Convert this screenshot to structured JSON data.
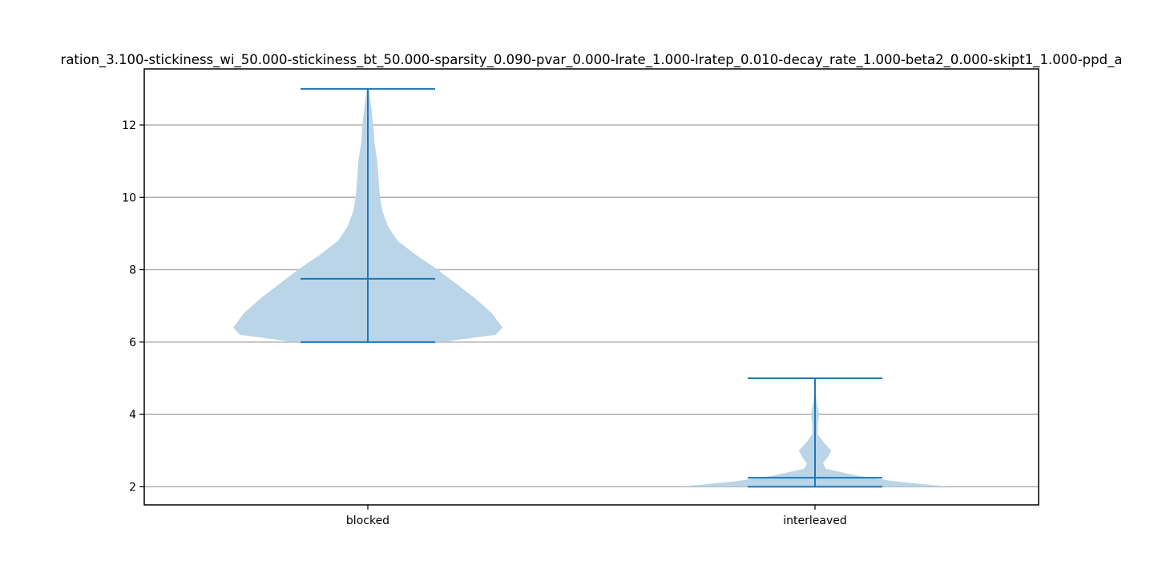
{
  "chart_data": {
    "type": "violin",
    "title": "ration_3.100-stickiness_wi_50.000-stickiness_bt_50.000-sparsity_0.090-pvar_0.000-lrate_1.000-lratep_0.010-decay_rate_1.000-beta2_0.000-skipt1_1.000-ppd_a",
    "categories": [
      "blocked",
      "interleaved"
    ],
    "ylim": [
      1.5,
      13.55
    ],
    "yticks": [
      2,
      4,
      6,
      8,
      10,
      12
    ],
    "grid": "horizontal",
    "color": "#1f77b4",
    "fill_color": "#bad5e8",
    "series": [
      {
        "category": "blocked",
        "min": 6,
        "median": 7.75,
        "max": 13,
        "density": [
          [
            6.0,
            0.55
          ],
          [
            6.2,
            0.95
          ],
          [
            6.4,
            1.0
          ],
          [
            6.8,
            0.92
          ],
          [
            7.2,
            0.8
          ],
          [
            7.6,
            0.66
          ],
          [
            8.0,
            0.52
          ],
          [
            8.4,
            0.36
          ],
          [
            8.8,
            0.22
          ],
          [
            9.2,
            0.15
          ],
          [
            9.6,
            0.11
          ],
          [
            10.0,
            0.09
          ],
          [
            10.5,
            0.08
          ],
          [
            11.0,
            0.07
          ],
          [
            11.5,
            0.05
          ],
          [
            12.0,
            0.04
          ],
          [
            12.5,
            0.025
          ],
          [
            13.0,
            0.008
          ]
        ]
      },
      {
        "category": "interleaved",
        "min": 2,
        "median": 2.25,
        "max": 5,
        "density": [
          [
            2.0,
            1.0
          ],
          [
            2.15,
            0.6
          ],
          [
            2.3,
            0.32
          ],
          [
            2.5,
            0.08
          ],
          [
            2.65,
            0.06
          ],
          [
            2.85,
            0.1
          ],
          [
            3.0,
            0.12
          ],
          [
            3.2,
            0.07
          ],
          [
            3.45,
            0.02
          ],
          [
            3.7,
            0.02
          ],
          [
            4.0,
            0.03
          ],
          [
            4.3,
            0.015
          ],
          [
            4.6,
            0.004
          ],
          [
            5.0,
            0.0
          ]
        ]
      }
    ]
  }
}
